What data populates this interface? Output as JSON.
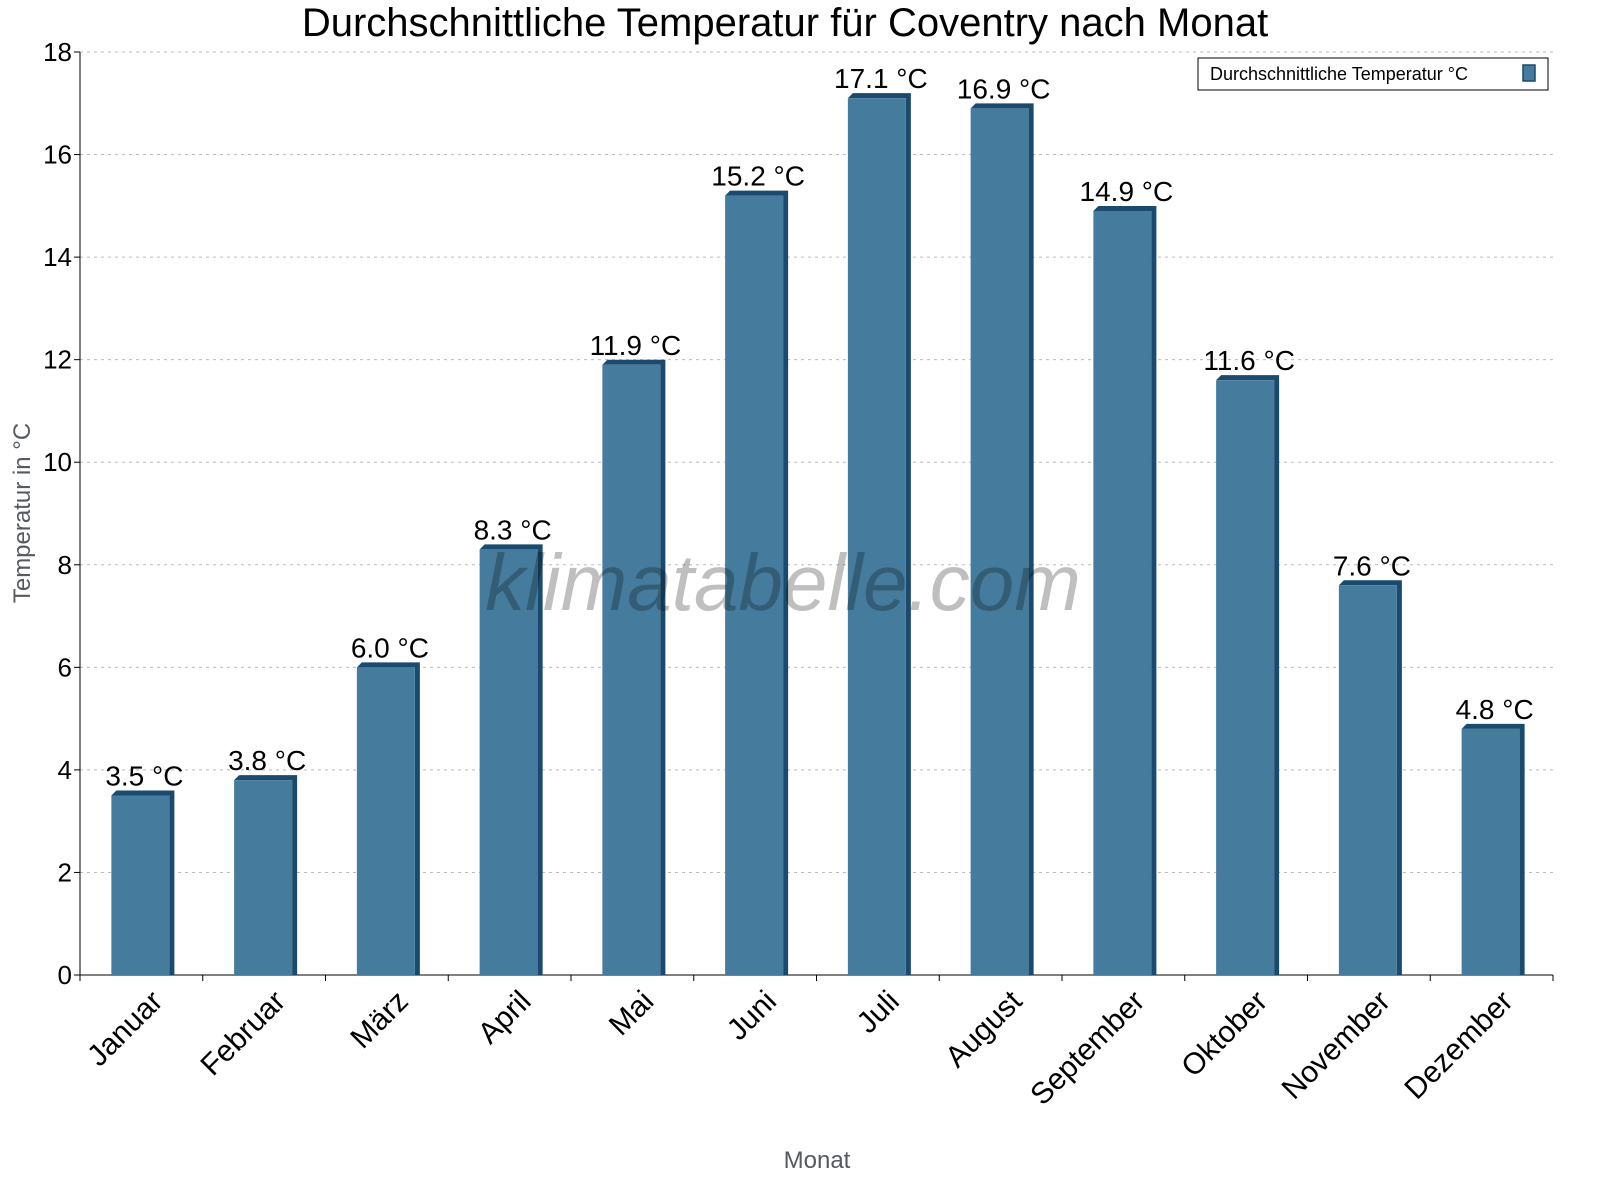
{
  "chart_data": {
    "type": "bar",
    "title": "Durchschnittliche Temperatur für Coventry nach Monat",
    "xlabel": "Monat",
    "ylabel": "Temperatur in °C",
    "ylim": [
      0,
      18
    ],
    "yticks": [
      0,
      2,
      4,
      6,
      8,
      10,
      12,
      14,
      16,
      18
    ],
    "grid": true,
    "legend_position": "top-right",
    "categories": [
      "Januar",
      "Februar",
      "März",
      "April",
      "Mai",
      "Juni",
      "Juli",
      "August",
      "September",
      "Oktober",
      "November",
      "Dezember"
    ],
    "series": [
      {
        "name": "Durchschnittliche Temperatur °C",
        "values": [
          3.5,
          3.8,
          6.0,
          8.3,
          11.9,
          15.2,
          17.1,
          16.9,
          14.9,
          11.6,
          7.6,
          4.8
        ],
        "data_labels": [
          "3.5 °C",
          "3.8 °C",
          "6.0 °C",
          "8.3 °C",
          "11.9 °C",
          "15.2 °C",
          "17.1 °C",
          "16.9 °C",
          "14.9 °C",
          "11.6 °C",
          "7.6 °C",
          "4.8 °C"
        ]
      }
    ],
    "colors": {
      "bar": "#457b9d",
      "bar_side": "#1a4a6e"
    },
    "watermark": "klimatabelle.com"
  }
}
